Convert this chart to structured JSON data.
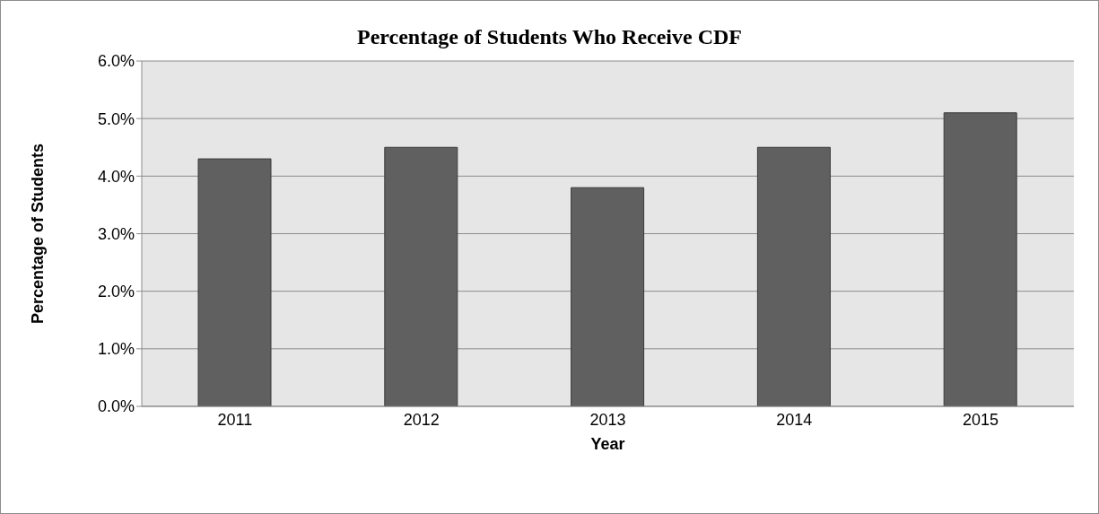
{
  "chart_data": {
    "type": "bar",
    "title": "Percentage of Students Who Receive CDF",
    "xlabel": "Year",
    "ylabel": "Percentage of Students",
    "categories": [
      "2011",
      "2012",
      "2013",
      "2014",
      "2015"
    ],
    "values": [
      4.3,
      4.5,
      3.8,
      4.5,
      5.1
    ],
    "color": "#606060",
    "ylim": [
      0,
      6
    ],
    "yticks": [
      {
        "value": 0,
        "label": "0.0%"
      },
      {
        "value": 1,
        "label": "1.0%"
      },
      {
        "value": 2,
        "label": "2.0%"
      },
      {
        "value": 3,
        "label": "3.0%"
      },
      {
        "value": 4,
        "label": "4.0%"
      },
      {
        "value": 5,
        "label": "5.0%"
      },
      {
        "value": 6,
        "label": "6.0%"
      }
    ],
    "grid": "y"
  }
}
